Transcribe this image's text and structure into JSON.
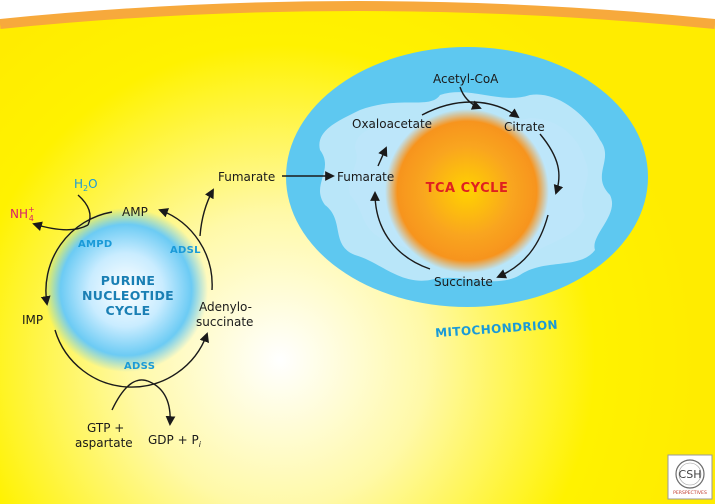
{
  "labels": {
    "amp": "AMP",
    "imp": "IMP",
    "adenylosuccinate_1": "Adenylo-",
    "adenylosuccinate_2": "succinate",
    "fumarate_out": "Fumarate",
    "fumarate_in": "Fumarate",
    "h2o": "H",
    "h2o_sub": "2",
    "h2o_end": "O",
    "nh4": "NH",
    "nh4_sub": "4",
    "nh4_sup": "+",
    "gtp_1": "GTP +",
    "gtp_2": "aspartate",
    "gdp": "GDP + P",
    "gdp_sub": "i",
    "acetyl_coa": "Acetyl-CoA",
    "oxaloacetate": "Oxaloacetate",
    "citrate": "Citrate",
    "succinate": "Succinate"
  },
  "enzymes": {
    "ampd": "AMPD",
    "adsl": "ADSL",
    "adss": "ADSS"
  },
  "cycles": {
    "purine_1": "PURINE",
    "purine_2": "NUCLEOTIDE",
    "purine_3": "CYCLE",
    "tca": "TCA CYCLE"
  },
  "organelle": "MITOCHONDRION",
  "logo": {
    "text_main": "CSH",
    "text_sub": "PERSPECTIVES"
  },
  "colors": {
    "cytoplasm_yellow": "#fff200",
    "membrane_orange": "#f7a93c",
    "mito_blue": "#5ec8f0",
    "tca_orange": "#f7941d",
    "label_blue": "#1a9ad8",
    "nh4_magenta": "#d8206a",
    "tca_red": "#e02020"
  }
}
